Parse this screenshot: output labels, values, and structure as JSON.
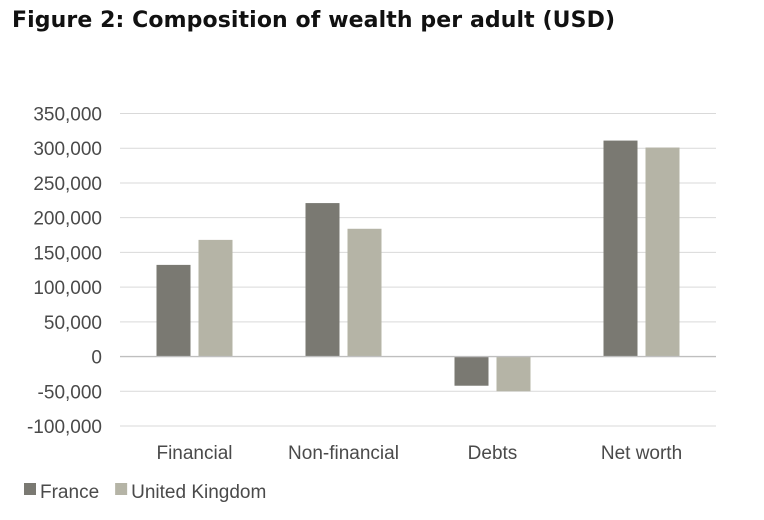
{
  "chart_data": {
    "type": "bar",
    "title": "Figure 2: Composition of wealth per adult (USD)",
    "categories": [
      "Financial",
      "Non-financial",
      "Debts",
      "Net worth"
    ],
    "series": [
      {
        "name": "France",
        "values": [
          132000,
          221000,
          -42000,
          311000
        ],
        "color": "#7a7972"
      },
      {
        "name": "United Kingdom",
        "values": [
          168000,
          184000,
          -50000,
          301000
        ],
        "color": "#b5b4a6"
      }
    ],
    "ylim": [
      -100000,
      350000
    ],
    "yticks": [
      350000,
      300000,
      250000,
      200000,
      150000,
      100000,
      50000,
      0,
      -50000,
      -100000
    ],
    "ytick_labels": [
      "350,000",
      "300,000",
      "250,000",
      "200,000",
      "150,000",
      "100,000",
      "50,000",
      "0",
      "-50,000",
      "-100,000"
    ],
    "xlabel": "",
    "ylabel": "",
    "grid": true,
    "legend_position": "bottom-left",
    "grid_color": "#d9d9d9",
    "axis_color": "#bfbfbf"
  }
}
